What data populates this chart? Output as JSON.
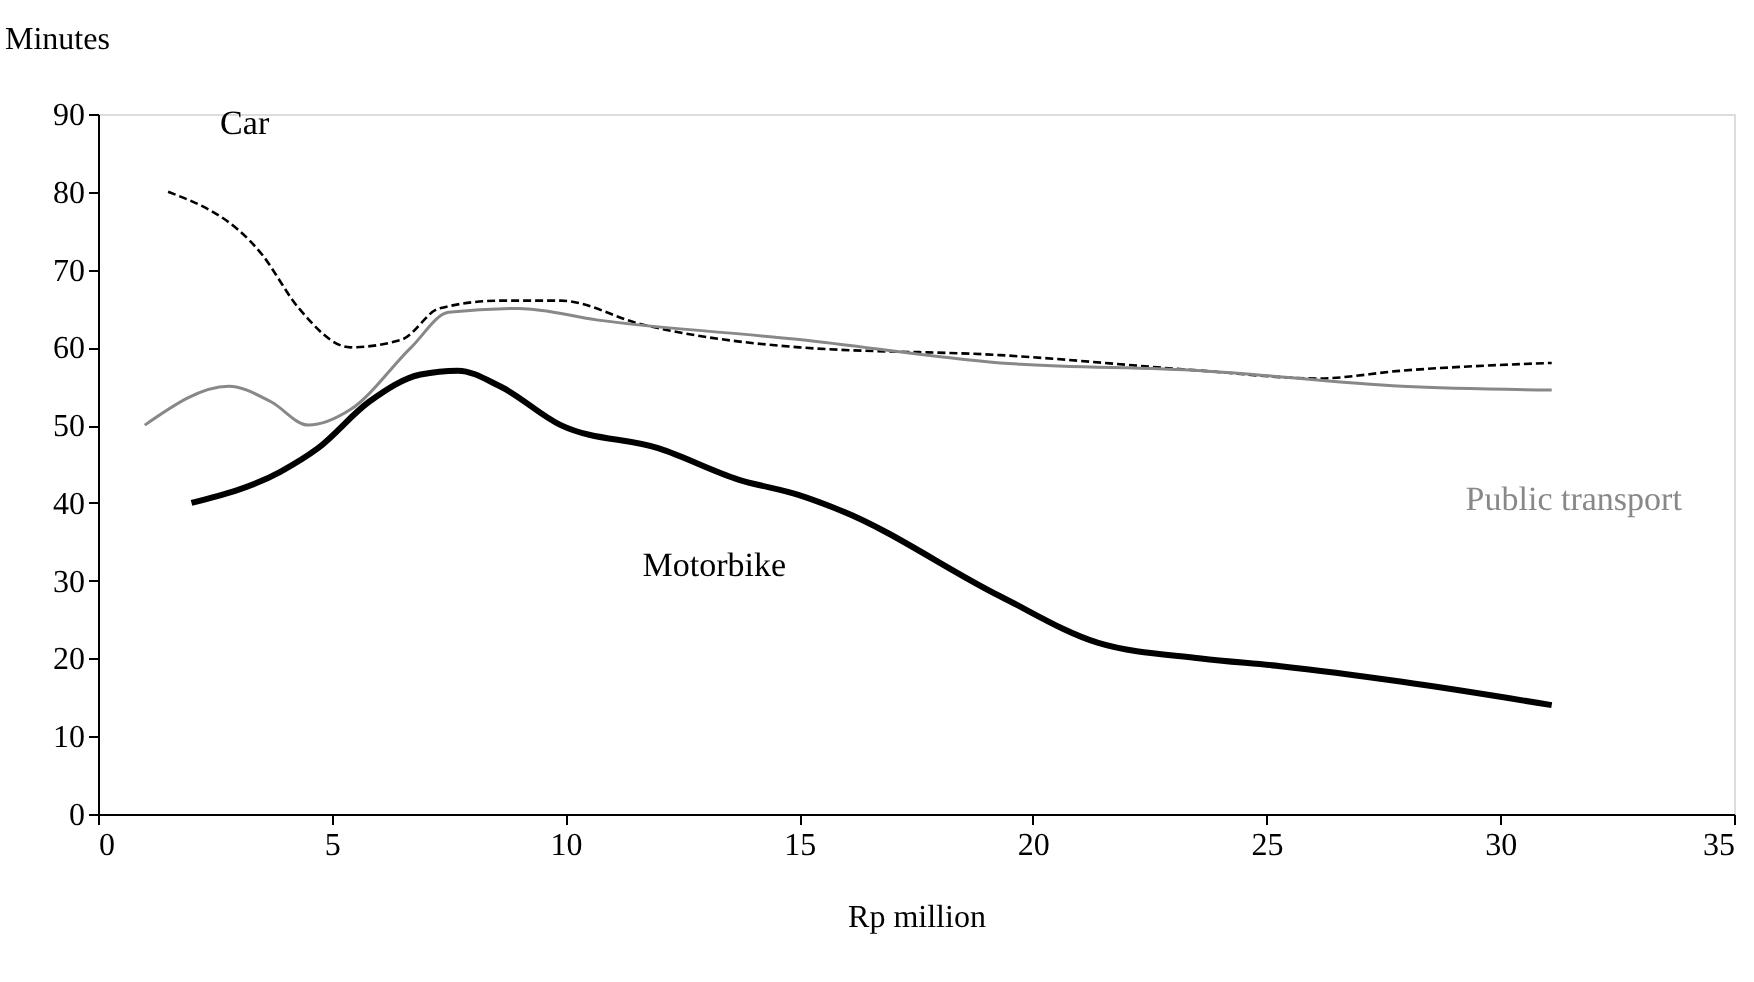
{
  "chart_data": {
    "type": "line",
    "xlabel": "Rp million",
    "ylabel": "Minutes",
    "xlim": [
      0,
      35
    ],
    "xticks": [
      0,
      5,
      10,
      15,
      20,
      25,
      30,
      35
    ],
    "ylim": [
      0,
      90
    ],
    "yticks": [
      0,
      10,
      20,
      30,
      40,
      50,
      60,
      70,
      80,
      90
    ],
    "grid": false,
    "series": [
      {
        "name": "Car",
        "color": "#000000",
        "line_style": "dashed",
        "x": [
          1.5,
          3.5,
          4.3,
          5.4,
          6.5,
          7.3,
          8.6,
          9.9,
          11.6,
          15,
          19.3,
          23.6,
          26.1,
          27.9,
          31.1
        ],
        "values": [
          80,
          72,
          65,
          60,
          61,
          65,
          66,
          66,
          63,
          60,
          59,
          57,
          56,
          57,
          58
        ]
      },
      {
        "name": "Public transport",
        "color": "#888888",
        "line_style": "solid",
        "x": [
          1,
          2.8,
          3.7,
          4.5,
          5.4,
          6.7,
          7.5,
          9,
          10.7,
          15,
          19.3,
          23.6,
          27.9,
          31.1
        ],
        "values": [
          50,
          55,
          53,
          50,
          52,
          60,
          64.5,
          65,
          63.5,
          61,
          58,
          57,
          55,
          54.5
        ]
      },
      {
        "name": "Motorbike",
        "color": "#000000",
        "line_style": "solid",
        "x": [
          2,
          3.9,
          4.7,
          5.8,
          6.9,
          7.7,
          8.6,
          9.9,
          12,
          13.7,
          15,
          15.9,
          19.3,
          21.4,
          23.6,
          25.3,
          27.9,
          31.1
        ],
        "values": [
          40,
          44,
          47,
          53,
          56.5,
          57,
          55,
          50,
          47,
          43,
          41,
          39,
          28,
          22,
          20,
          19,
          17,
          14
        ]
      }
    ]
  }
}
